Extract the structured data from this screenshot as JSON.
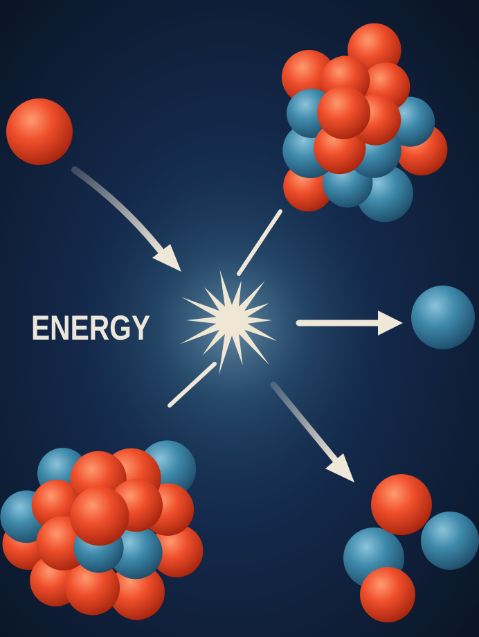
{
  "label": "ENERGY"
}
